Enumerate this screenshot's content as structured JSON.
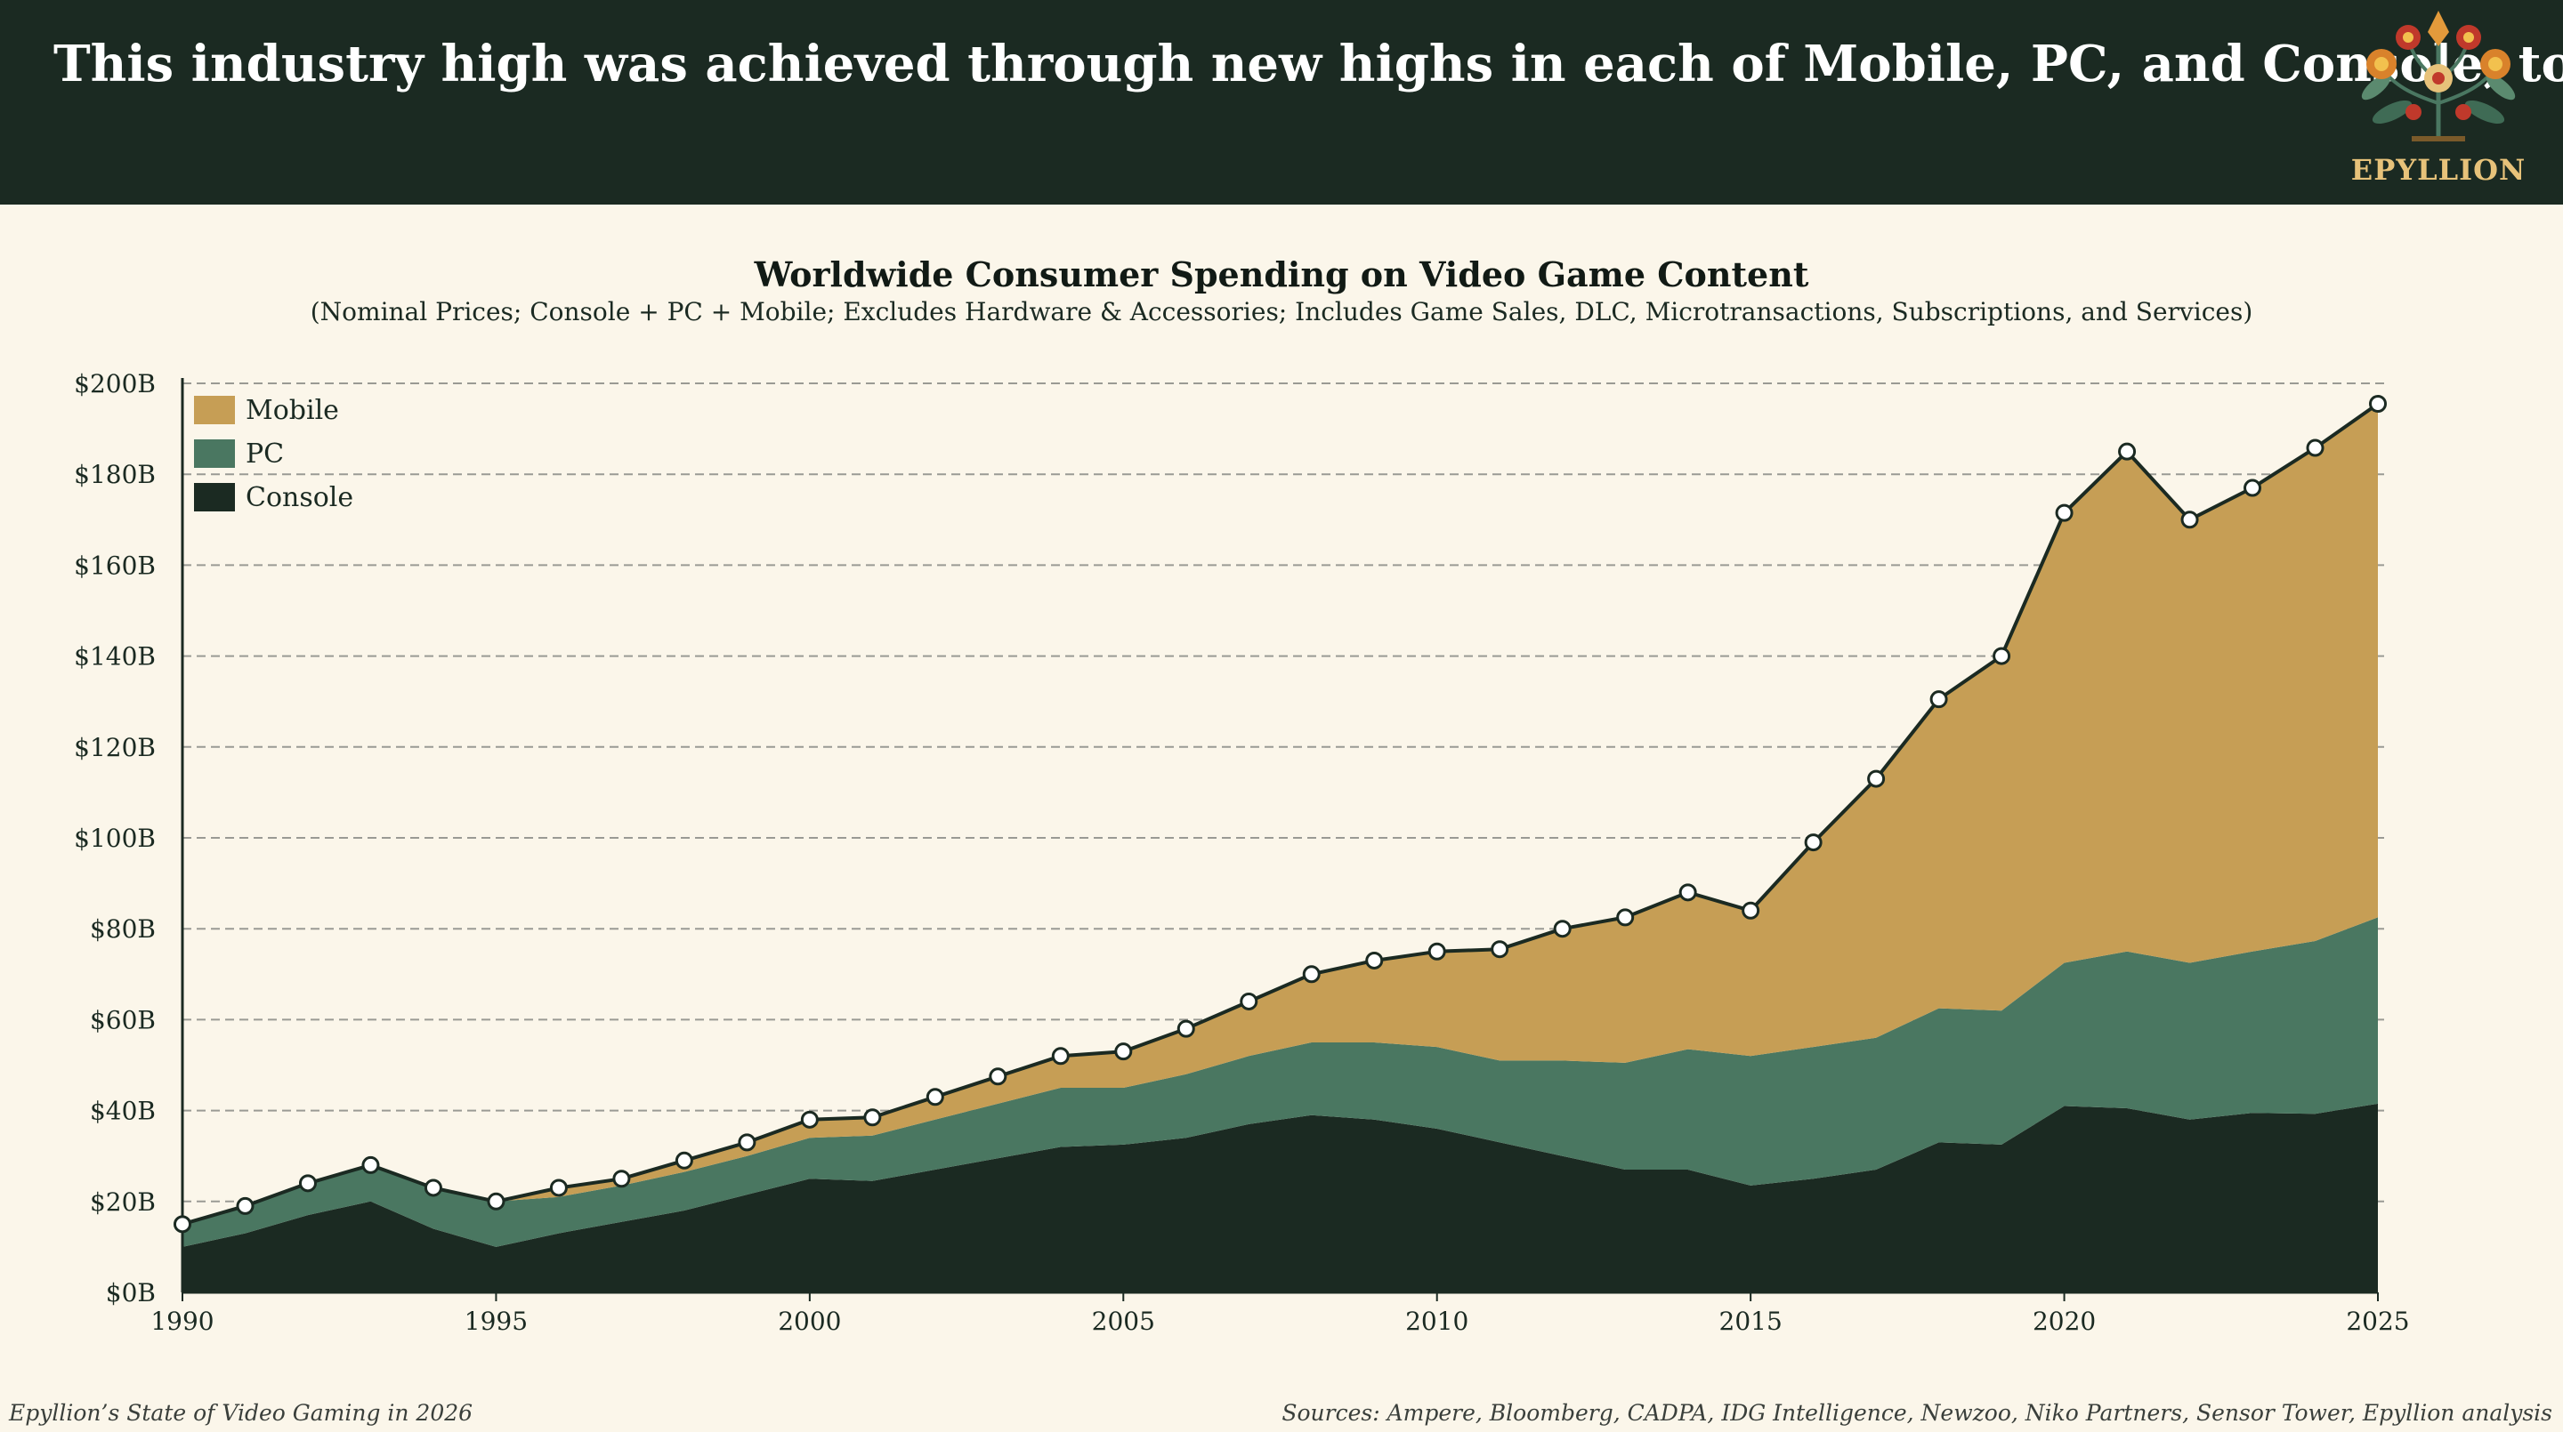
{
  "header": {
    "headline": "This industry high was achieved through new highs in each of Mobile, PC, and Console, too",
    "brand": "EPYLLION",
    "brand_icon": "floral-tree-icon"
  },
  "footer": {
    "left": "Epyllion’s State of Video Gaming in 2026",
    "right": "Sources: Ampere, Bloomberg, CADPA, IDG Intelligence, Newzoo, Niko Partners, Sensor Tower, Epyllion analysis"
  },
  "colors": {
    "background": "#fbf6ea",
    "header": "#1b2a22",
    "mobile": "#c69e55",
    "pc": "#4a7761",
    "console": "#1b2a22",
    "gridline": "#9a9a94"
  },
  "chart_data": {
    "type": "area",
    "stacked": true,
    "title": "Worldwide Consumer Spending on Video Game Content",
    "subtitle": "(Nominal Prices; Console + PC + Mobile; Excludes Hardware & Accessories; Includes Game Sales, DLC, Microtransactions, Subscriptions, and Services)",
    "xlabel": "",
    "ylabel": "",
    "xlim": [
      1990,
      2025
    ],
    "ylim": [
      0,
      200
    ],
    "x_ticks": [
      1990,
      1995,
      2000,
      2005,
      2010,
      2015,
      2020,
      2025
    ],
    "y_ticks": [
      0,
      20,
      40,
      60,
      80,
      100,
      120,
      140,
      160,
      180,
      200
    ],
    "y_tick_labels": [
      "$0B",
      "$20B",
      "$40B",
      "$60B",
      "$80B",
      "$100B",
      "$120B",
      "$140B",
      "$160B",
      "$180B",
      "$200B"
    ],
    "grid": "horizontal dashed",
    "legend_position": "top-left",
    "x": [
      1990,
      1991,
      1992,
      1993,
      1994,
      1995,
      1996,
      1997,
      1998,
      1999,
      2000,
      2001,
      2002,
      2003,
      2004,
      2005,
      2006,
      2007,
      2008,
      2009,
      2010,
      2011,
      2012,
      2013,
      2014,
      2015,
      2016,
      2017,
      2018,
      2019,
      2020,
      2021,
      2022,
      2023,
      2024,
      2025
    ],
    "series": [
      {
        "name": "Console",
        "color": "#1b2a22",
        "values": [
          10,
          13,
          17,
          20,
          14,
          10,
          13,
          15.5,
          18,
          21.5,
          25,
          24.5,
          27,
          29.5,
          32,
          32.5,
          34,
          37,
          39,
          38,
          36,
          33,
          30,
          27,
          27,
          23.5,
          25,
          27,
          33,
          32.5,
          41,
          40.5,
          38,
          39.5,
          39.3,
          41.5
        ]
      },
      {
        "name": "PC",
        "color": "#4a7761",
        "values": [
          5,
          6,
          7,
          8,
          9,
          10,
          8,
          8,
          8.5,
          8.5,
          9,
          10,
          11,
          12,
          13,
          12.5,
          14,
          15,
          16,
          17,
          18,
          18,
          21,
          23.5,
          26.5,
          28.5,
          29,
          29,
          29.5,
          29.5,
          31.5,
          34.5,
          34.5,
          35.5,
          38,
          41
        ]
      },
      {
        "name": "Mobile",
        "color": "#c69e55",
        "values": [
          0,
          0,
          0,
          0,
          0,
          0,
          2,
          1.5,
          2.5,
          3,
          4,
          4,
          5,
          6,
          7,
          8,
          10,
          12,
          15,
          18,
          21,
          24.5,
          29,
          32,
          34.5,
          32,
          45,
          57,
          68,
          78,
          99,
          110,
          97.5,
          102,
          108.5,
          113
        ]
      }
    ],
    "total": {
      "name": "Total",
      "values": [
        15,
        19,
        24,
        28,
        23,
        20,
        23,
        25,
        29,
        33,
        38,
        38.5,
        43,
        47.5,
        52,
        53,
        58,
        64,
        70,
        73,
        75,
        75.5,
        80,
        82.5,
        88,
        84,
        99,
        113,
        130.5,
        140,
        171.5,
        185,
        170,
        177,
        185.8,
        195.5
      ]
    }
  }
}
